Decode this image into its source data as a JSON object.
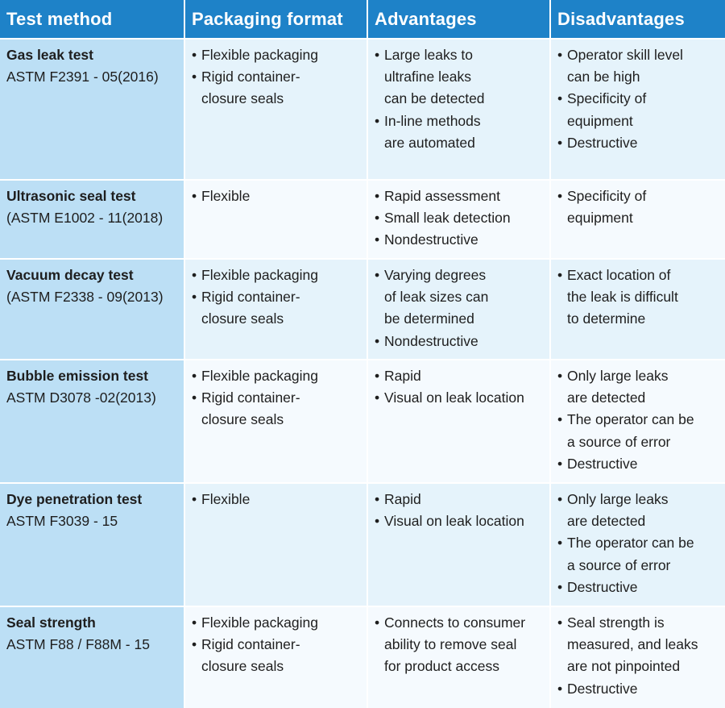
{
  "headers": [
    "Test method",
    "Packaging format",
    "Advantages",
    "Disadvantages"
  ],
  "rows": [
    {
      "method": "Gas leak test",
      "standard": "ASTM F2391 - 05(2016)",
      "packaging": [
        "Flexible packaging",
        "Rigid container-\nclosure seals"
      ],
      "advantages": [
        "Large leaks to\nultrafine leaks\ncan be detected",
        "In-line methods\nare automated"
      ],
      "disadvantages": [
        "Operator skill level\ncan be high",
        "Specificity of\nequipment",
        "Destructive"
      ]
    },
    {
      "method": "Ultrasonic seal test",
      "standard": "(ASTM E1002 - 11(2018)",
      "packaging": [
        "Flexible"
      ],
      "advantages": [
        "Rapid assessment",
        "Small leak detection",
        "Nondestructive"
      ],
      "disadvantages": [
        "Specificity of\nequipment"
      ]
    },
    {
      "method": "Vacuum decay test",
      "standard": "(ASTM F2338 - 09(2013)",
      "packaging": [
        "Flexible packaging",
        "Rigid container-\nclosure seals"
      ],
      "advantages": [
        "Varying degrees\nof leak sizes can\nbe determined",
        "Nondestructive"
      ],
      "disadvantages": [
        "Exact location of\nthe leak is difficult\nto determine"
      ]
    },
    {
      "method": "Bubble emission test",
      "standard": "ASTM D3078 -02(2013)",
      "packaging": [
        "Flexible packaging",
        "Rigid container-\nclosure seals"
      ],
      "advantages": [
        "Rapid",
        "Visual on leak location"
      ],
      "disadvantages": [
        "Only large leaks\nare detected",
        "The operator can be\na source of error",
        "Destructive"
      ]
    },
    {
      "method": "Dye penetration test",
      "standard": "ASTM F3039 - 15",
      "packaging": [
        "Flexible"
      ],
      "advantages": [
        "Rapid",
        "Visual on leak location"
      ],
      "disadvantages": [
        "Only large leaks\nare detected",
        "The operator can be\na source of error",
        "Destructive"
      ]
    },
    {
      "method": "Seal strength",
      "standard": "ASTM F88 / F88M - 15",
      "packaging": [
        "Flexible packaging",
        "Rigid container-\nclosure seals"
      ],
      "advantages": [
        "Connects to consumer\nability to remove seal\nfor product access"
      ],
      "disadvantages": [
        "Seal strength is\nmeasured, and leaks\nare not pinpointed",
        "Destructive"
      ]
    }
  ],
  "colors": {
    "header_bg": "#1e82c8",
    "method_bg": "#bcdff5",
    "row_odd_bg": "#e5f3fb",
    "row_even_bg": "#f5fafe"
  }
}
